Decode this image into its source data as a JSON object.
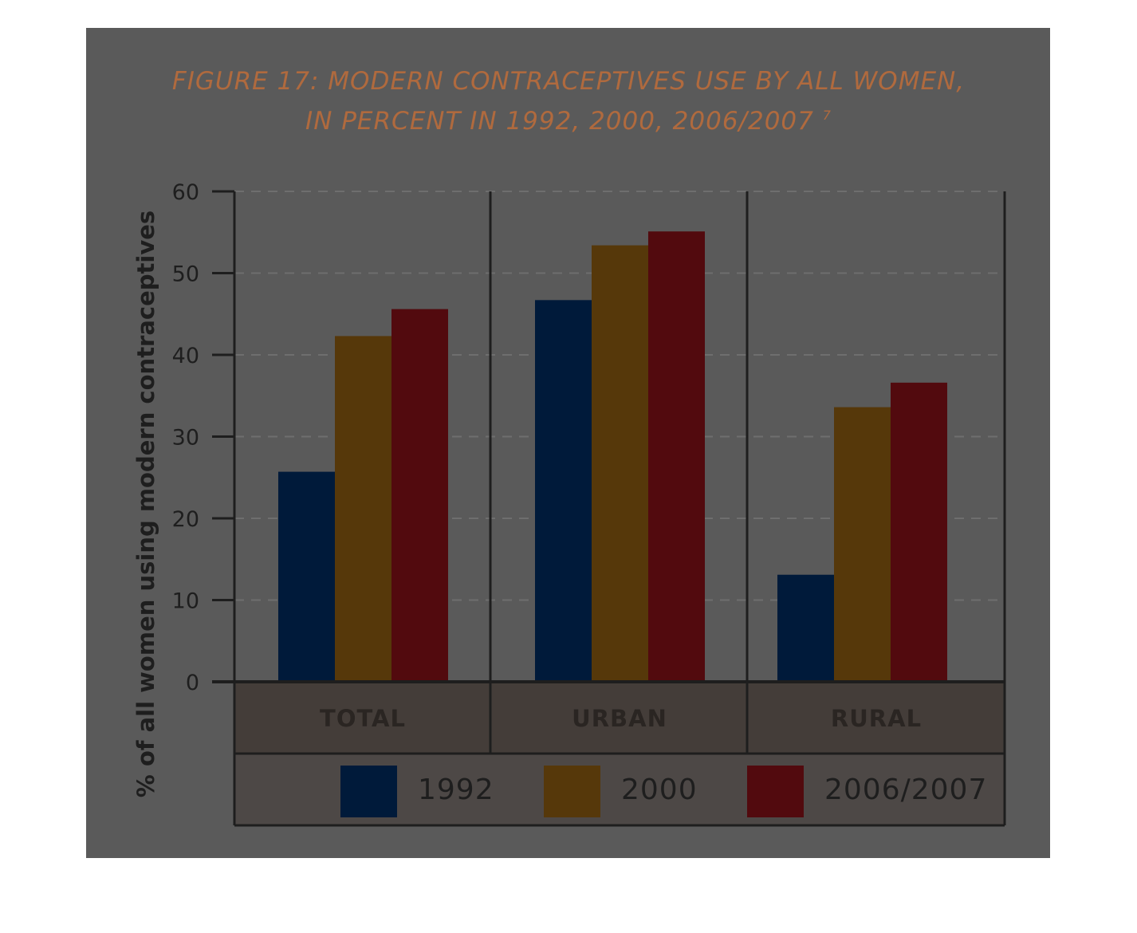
{
  "chart_data": {
    "type": "bar",
    "title_line1": "FIGURE 17: MODERN CONTRACEPTIVES USE BY ALL WOMEN,",
    "title_line2": "IN PERCENT IN 1992, 2000, 2006/2007",
    "title_footnote": "7",
    "ylabel": "% of all women using modern contraceptives",
    "xlabel": "",
    "ylim": [
      0,
      60
    ],
    "yticks": [
      "0",
      "10",
      "20",
      "30",
      "40",
      "50",
      "60"
    ],
    "grid": true,
    "legend_position": "bottom",
    "categories": [
      "TOTAL",
      "URBAN",
      "RURAL"
    ],
    "series": [
      {
        "name": "1992",
        "values": [
          25.7,
          46.7,
          13.1
        ],
        "color": "#001a3a"
      },
      {
        "name": "2000",
        "values": [
          42.3,
          53.4,
          33.6
        ],
        "color": "#56380a"
      },
      {
        "name": "2006/2007",
        "values": [
          45.6,
          55.1,
          36.6
        ],
        "color": "#520a0e"
      }
    ]
  }
}
